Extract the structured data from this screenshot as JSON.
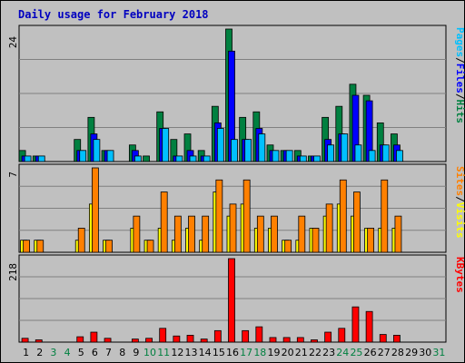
{
  "chart_data": {
    "type": "bar",
    "title": "Daily usage for February 2018",
    "x": [
      "1",
      "2",
      "3",
      "4",
      "5",
      "6",
      "7",
      "8",
      "9",
      "10",
      "11",
      "12",
      "13",
      "14",
      "15",
      "16",
      "17",
      "18",
      "19",
      "20",
      "21",
      "22",
      "23",
      "24",
      "25",
      "26",
      "27",
      "28",
      "29",
      "30",
      "31"
    ],
    "weekend_days": [
      "3",
      "4",
      "10",
      "11",
      "17",
      "18",
      "24",
      "25",
      "31"
    ],
    "colors": {
      "background": "#C0C0C0",
      "frame": "#D8D8D8",
      "title": "#0000C0",
      "hits": "#008040",
      "files": "#0000FF",
      "pages": "#00C0FF",
      "visits": "#FFFF00",
      "sites": "#FF8000",
      "kbytes": "#FF0000",
      "weekend_label": "#008040",
      "weekday_label": "#000000"
    },
    "panels": [
      {
        "id": "hits_files_pages",
        "ymax_label": "24",
        "ymax": 24,
        "legend": [
          {
            "text": "Hits",
            "color": "#008040"
          },
          {
            "text": "/",
            "color": "#000000"
          },
          {
            "text": "Files",
            "color": "#0000FF"
          },
          {
            "text": "/",
            "color": "#000000"
          },
          {
            "text": "Pages",
            "color": "#00C0FF"
          }
        ],
        "series": [
          {
            "name": "Hits",
            "color": "#008040",
            "values": [
              2,
              1,
              0,
              0,
              4,
              8,
              2,
              0,
              3,
              1,
              9,
              4,
              5,
              2,
              10,
              24,
              8,
              9,
              3,
              2,
              2,
              1,
              8,
              10,
              14,
              12,
              7,
              5,
              0,
              0,
              0
            ]
          },
          {
            "name": "Files",
            "color": "#0000FF",
            "values": [
              1,
              1,
              0,
              0,
              2,
              5,
              2,
              0,
              2,
              0,
              6,
              1,
              2,
              1,
              7,
              20,
              4,
              6,
              2,
              2,
              1,
              1,
              4,
              5,
              12,
              11,
              3,
              3,
              0,
              0,
              0
            ]
          },
          {
            "name": "Pages",
            "color": "#00C0FF",
            "values": [
              1,
              1,
              0,
              0,
              2,
              4,
              2,
              0,
              1,
              0,
              6,
              1,
              1,
              1,
              6,
              4,
              4,
              5,
              2,
              2,
              1,
              1,
              3,
              5,
              3,
              2,
              3,
              2,
              0,
              0,
              0
            ]
          }
        ]
      },
      {
        "id": "visits_sites",
        "ymax_label": "7",
        "ymax": 7,
        "legend": [
          {
            "text": "Visits",
            "color": "#FFFF00"
          },
          {
            "text": "/",
            "color": "#000000"
          },
          {
            "text": "Sites",
            "color": "#FF8000"
          }
        ],
        "series": [
          {
            "name": "Visits",
            "color": "#FFFF00",
            "values": [
              1,
              1,
              0,
              0,
              1,
              4,
              1,
              0,
              2,
              1,
              2,
              1,
              2,
              1,
              5,
              3,
              4,
              2,
              2,
              1,
              1,
              2,
              3,
              4,
              3,
              2,
              2,
              2,
              0,
              0,
              0
            ]
          },
          {
            "name": "Sites",
            "color": "#FF8000",
            "values": [
              1,
              1,
              0,
              0,
              2,
              7,
              1,
              0,
              3,
              1,
              5,
              3,
              3,
              3,
              6,
              4,
              6,
              3,
              3,
              1,
              3,
              2,
              4,
              6,
              5,
              2,
              6,
              3,
              0,
              0,
              0
            ]
          }
        ]
      },
      {
        "id": "kbytes",
        "ymax_label": "218",
        "ymax": 218,
        "legend": [
          {
            "text": "KBytes",
            "color": "#FF0000"
          }
        ],
        "series": [
          {
            "name": "KBytes",
            "color": "#FF0000",
            "values": [
              10,
              6,
              0,
              0,
              14,
              26,
              10,
              0,
              8,
              10,
              36,
              16,
              18,
              8,
              30,
              218,
              30,
              40,
              12,
              12,
              12,
              6,
              26,
              36,
              92,
              80,
              20,
              18,
              0,
              0,
              0
            ]
          }
        ]
      }
    ]
  }
}
